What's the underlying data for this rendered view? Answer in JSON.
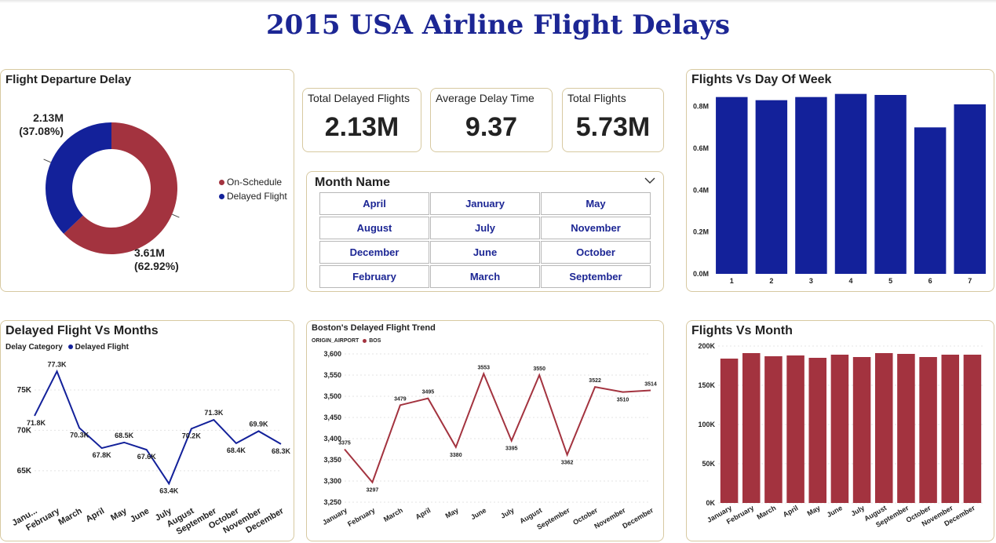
{
  "title": "2015 USA Airline Flight Delays",
  "colors": {
    "blue": "#13219a",
    "red": "#a3333f",
    "accent_title": "#1c2694",
    "border": "#d7c9a1"
  },
  "kpis": [
    {
      "label": "Total Delayed Flights",
      "value": "2.13M"
    },
    {
      "label": "Average Delay Time",
      "value": "9.37"
    },
    {
      "label": "Total Flights",
      "value": "5.73M"
    }
  ],
  "slicer": {
    "title": "Month Name",
    "icon": "chevron-down-icon",
    "options": [
      "April",
      "January",
      "May",
      "August",
      "July",
      "November",
      "December",
      "June",
      "October",
      "February",
      "March",
      "September"
    ]
  },
  "chart_data": [
    {
      "id": "departure",
      "type": "pie",
      "title": "Flight Departure Delay",
      "labels": [
        "On-Schedule",
        "Delayed Flight"
      ],
      "values": [
        3.61,
        2.13
      ],
      "value_labels": [
        "3.61M",
        "2.13M"
      ],
      "pct_labels": [
        "(62.92%)",
        "(37.08%)"
      ],
      "colors": [
        "#a3333f",
        "#13219a"
      ],
      "donut": true,
      "legend": "right"
    },
    {
      "id": "dow",
      "type": "bar",
      "title": "Flights Vs Day Of Week",
      "categories": [
        "1",
        "2",
        "3",
        "4",
        "5",
        "6",
        "7"
      ],
      "values": [
        0.845,
        0.83,
        0.845,
        0.86,
        0.855,
        0.7,
        0.81
      ],
      "yticks": [
        "0.0M",
        "0.2M",
        "0.4M",
        "0.6M",
        "0.8M"
      ],
      "ylim": [
        0,
        0.9
      ],
      "color": "#13219a"
    },
    {
      "id": "delayed_months",
      "type": "line",
      "title": "Delayed Flight Vs Months",
      "legend_title": "Delay Category",
      "series_name": "Delayed Flight",
      "categories": [
        "Janu...",
        "February",
        "March",
        "April",
        "May",
        "June",
        "July",
        "August",
        "September",
        "October",
        "November",
        "December"
      ],
      "values": [
        71.8,
        77.3,
        70.3,
        67.8,
        68.5,
        67.6,
        63.4,
        70.2,
        71.3,
        68.4,
        69.9,
        68.3
      ],
      "value_labels": [
        "71.8K",
        "77.3K",
        "70.3K",
        "67.8K",
        "68.5K",
        "67.6K",
        "63.4K",
        "70.2K",
        "71.3K",
        "68.4K",
        "69.9K",
        "68.3K"
      ],
      "yticks": [
        "65K",
        "70K",
        "75K"
      ],
      "ylim": [
        61,
        78.5
      ],
      "color": "#13219a",
      "legend": "top-left"
    },
    {
      "id": "boston",
      "type": "line",
      "title": "Boston's Delayed Flight Trend",
      "legend_title": "ORIGIN_AIRPORT",
      "series_name": "BOS",
      "categories": [
        "January",
        "February",
        "March",
        "April",
        "May",
        "June",
        "July",
        "August",
        "September",
        "October",
        "November",
        "December"
      ],
      "values": [
        3375,
        3297,
        3479,
        3495,
        3380,
        3553,
        3395,
        3550,
        3362,
        3522,
        3510,
        3514
      ],
      "value_labels": [
        "3375",
        "3297",
        "3479",
        "3495",
        "3380",
        "3553",
        "3395",
        "3550",
        "3362",
        "3522",
        "3510",
        "3514"
      ],
      "yticks": [
        "3,250",
        "3,300",
        "3,350",
        "3,400",
        "3,450",
        "3,500",
        "3,550",
        "3,600"
      ],
      "ylim": [
        3250,
        3600
      ],
      "color": "#a3333f",
      "legend": "top-left"
    },
    {
      "id": "flights_month",
      "type": "bar",
      "title": "Flights Vs Month",
      "categories": [
        "January",
        "February",
        "March",
        "April",
        "May",
        "June",
        "July",
        "August",
        "September",
        "October",
        "November",
        "December"
      ],
      "values": [
        184,
        191,
        187,
        188,
        185,
        189,
        186,
        191,
        190,
        186,
        189,
        189
      ],
      "yticks": [
        "0K",
        "50K",
        "100K",
        "150K",
        "200K"
      ],
      "ylim": [
        0,
        200
      ],
      "color": "#a3333f"
    }
  ]
}
